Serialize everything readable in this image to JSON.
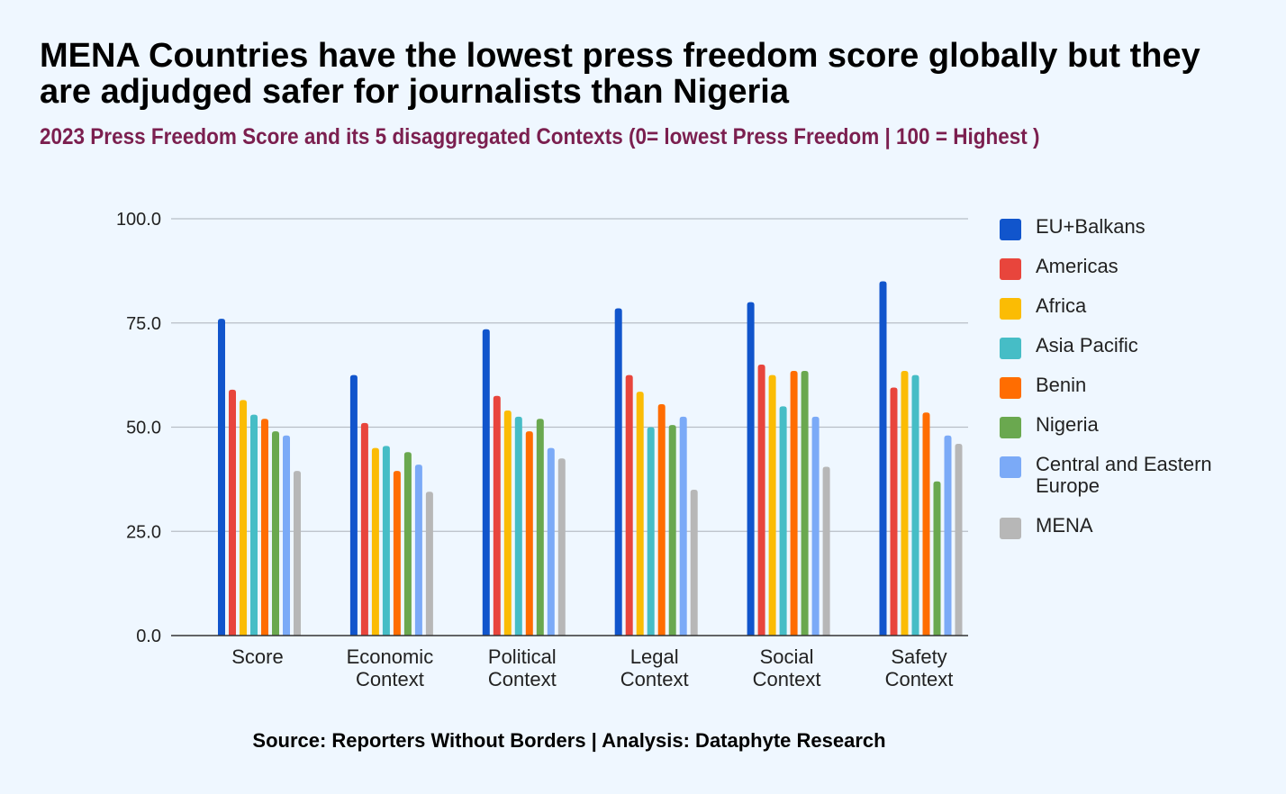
{
  "chart_data": {
    "type": "bar",
    "title": "MENA Countries have the lowest press freedom score globally but they are adjudged safer for journalists than Nigeria",
    "subtitle": "2023 Press Freedom Score and its 5 disaggregated Contexts (0= lowest Press Freedom | 100 = Highest )",
    "source": "Source: Reporters Without Borders | Analysis: Dataphyte Research",
    "categories": [
      [
        "Score"
      ],
      [
        "Economic",
        "Context"
      ],
      [
        "Political",
        "Context"
      ],
      [
        "Legal",
        "Context"
      ],
      [
        "Social",
        "Context"
      ],
      [
        "Safety",
        "Context"
      ]
    ],
    "series": [
      {
        "name": "EU+Balkans",
        "color": "#1155cc",
        "values": [
          76.0,
          62.5,
          73.5,
          78.5,
          80.0,
          85.0
        ]
      },
      {
        "name": "Americas",
        "color": "#e8453c",
        "values": [
          59.0,
          51.0,
          57.5,
          62.5,
          65.0,
          59.5
        ]
      },
      {
        "name": "Africa",
        "color": "#fbbc04",
        "values": [
          56.5,
          45.0,
          54.0,
          58.5,
          62.5,
          63.5
        ]
      },
      {
        "name": "Asia Pacific",
        "color": "#46bdc6",
        "values": [
          53.0,
          45.5,
          52.5,
          50.0,
          55.0,
          62.5
        ]
      },
      {
        "name": "Benin",
        "color": "#ff6d01",
        "values": [
          52.0,
          39.5,
          49.0,
          55.5,
          63.5,
          53.5
        ]
      },
      {
        "name": "Nigeria",
        "color": "#6aa84f",
        "values": [
          49.0,
          44.0,
          52.0,
          50.5,
          63.5,
          37.0
        ]
      },
      {
        "name": "Central and Eastern Europe",
        "color": "#7baaf7",
        "values": [
          48.0,
          41.0,
          45.0,
          52.5,
          52.5,
          48.0
        ]
      },
      {
        "name": "MENA",
        "color": "#b7b7b7",
        "values": [
          39.5,
          34.5,
          42.5,
          35.0,
          40.5,
          46.0
        ]
      }
    ],
    "yticks": [
      "0.0",
      "25.0",
      "50.0",
      "75.0",
      "100.0"
    ],
    "ylim": [
      0,
      100
    ],
    "grid": true,
    "legend": "right"
  }
}
